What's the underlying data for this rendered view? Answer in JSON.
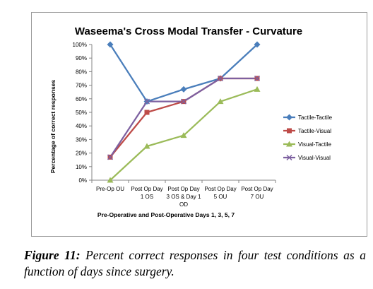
{
  "chart_data": {
    "type": "line",
    "title": "Waseema's Cross Modal Transfer - Curvature",
    "xlabel": "Pre-Operative and Post-Operative Days  1, 3, 5, 7",
    "ylabel": "Percentage of correct responses",
    "categories": [
      [
        "Pre-Op OU"
      ],
      [
        "Post Op Day",
        "1 OS"
      ],
      [
        "Post Op Day",
        "3 OS & Day 1",
        "OD"
      ],
      [
        "Post Op Day",
        "5 OU"
      ],
      [
        "Post Op Day",
        "7 OU"
      ]
    ],
    "ylim": [
      0,
      100
    ],
    "yticks": [
      "0%",
      "10%",
      "20%",
      "30%",
      "40%",
      "50%",
      "60%",
      "70%",
      "80%",
      "90%",
      "100%"
    ],
    "grid": false,
    "legend_position": "right",
    "series": [
      {
        "name": "Tactile-Tactile",
        "color": "#4a7ebb",
        "marker": "diamond",
        "values": [
          100,
          58,
          67,
          75,
          100
        ]
      },
      {
        "name": "Tactile-Visual",
        "color": "#be4b48",
        "marker": "square",
        "values": [
          17,
          50,
          58,
          75,
          75
        ]
      },
      {
        "name": "Visual-Tactile",
        "color": "#9bbb59",
        "marker": "triangle",
        "values": [
          0,
          25,
          33,
          58,
          67
        ]
      },
      {
        "name": "Visual-Visual",
        "color": "#7d60a0",
        "marker": "x",
        "values": [
          17,
          58,
          58,
          75,
          75
        ]
      }
    ]
  },
  "caption": {
    "label": "Figure 11:",
    "text": " Percent correct responses in four test conditions as a function of days since surgery."
  }
}
